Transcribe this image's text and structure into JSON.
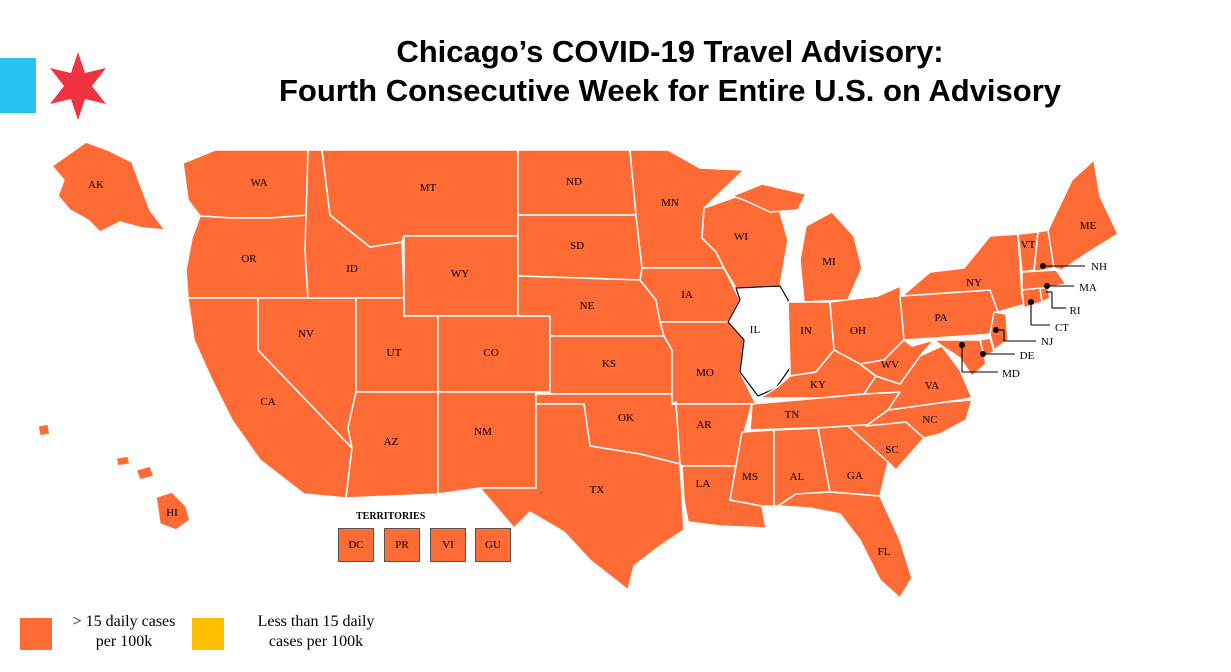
{
  "header": {
    "title_line1": "Chicago’s COVID-19 Travel Advisory:",
    "title_line2": "Fourth Consecutive Week for Entire U.S. on Advisory"
  },
  "colors": {
    "advisory": "#fe6b35",
    "non_advisory": "#ffc000",
    "home_state": "#ffffff",
    "flag_blue": "#29c3f2",
    "flag_star": "#ef3340"
  },
  "icons": [
    "chicago-flag-stripe",
    "chicago-star-icon"
  ],
  "map": {
    "states": {
      "WA": "WA",
      "OR": "OR",
      "CA": "CA",
      "NV": "NV",
      "ID": "ID",
      "MT": "MT",
      "WY": "WY",
      "UT": "UT",
      "AZ": "AZ",
      "CO": "CO",
      "NM": "NM",
      "ND": "ND",
      "SD": "SD",
      "NE": "NE",
      "KS": "KS",
      "OK": "OK",
      "TX": "TX",
      "MN": "MN",
      "IA": "IA",
      "MO": "MO",
      "AR": "AR",
      "LA": "LA",
      "WI": "WI",
      "IL": "IL",
      "MI": "MI",
      "IN": "IN",
      "OH": "OH",
      "KY": "KY",
      "TN": "TN",
      "MS": "MS",
      "AL": "AL",
      "GA": "GA",
      "FL": "FL",
      "SC": "SC",
      "NC": "NC",
      "VA": "VA",
      "WV": "WV",
      "PA": "PA",
      "NY": "NY",
      "VT": "VT",
      "ME": "ME",
      "AK": "AK",
      "HI": "HI",
      "NH": "NH",
      "MA": "MA",
      "RI": "RI",
      "CT": "CT",
      "NJ": "NJ",
      "DE": "DE",
      "MD": "MD"
    },
    "territories_title": "TERRITORIES",
    "territories": [
      "DC",
      "PR",
      "VI",
      "GU"
    ]
  },
  "legend": {
    "advisory_line1": "> 15 daily cases",
    "advisory_line2": "per 100k",
    "non_advisory_line1": "Less than 15 daily",
    "non_advisory_line2": "cases per 100k"
  }
}
